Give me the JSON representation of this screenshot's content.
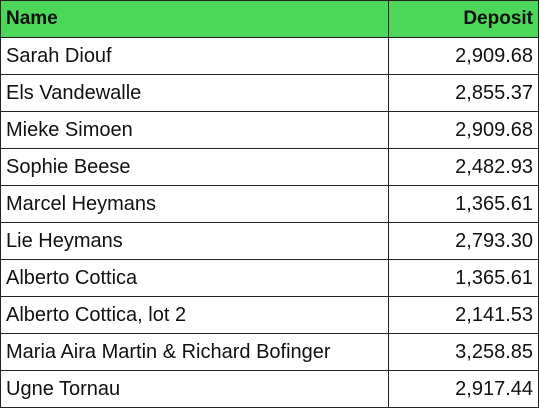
{
  "table": {
    "columns": [
      "Name",
      "Deposit"
    ],
    "rows": [
      [
        "Sarah Diouf",
        "2,909.68"
      ],
      [
        "Els Vandewalle",
        "2,855.37"
      ],
      [
        "Mieke Simoen",
        "2,909.68"
      ],
      [
        "Sophie Beese",
        "2,482.93"
      ],
      [
        "Marcel Heymans",
        "1,365.61"
      ],
      [
        "Lie Heymans",
        "2,793.30"
      ],
      [
        "Alberto Cottica",
        "1,365.61"
      ],
      [
        "Alberto Cottica, lot 2",
        "2,141.53"
      ],
      [
        "Maria Aira Martin & Richard Bofinger",
        "3,258.85"
      ],
      [
        "Ugne Tornau",
        "2,917.44"
      ]
    ]
  }
}
